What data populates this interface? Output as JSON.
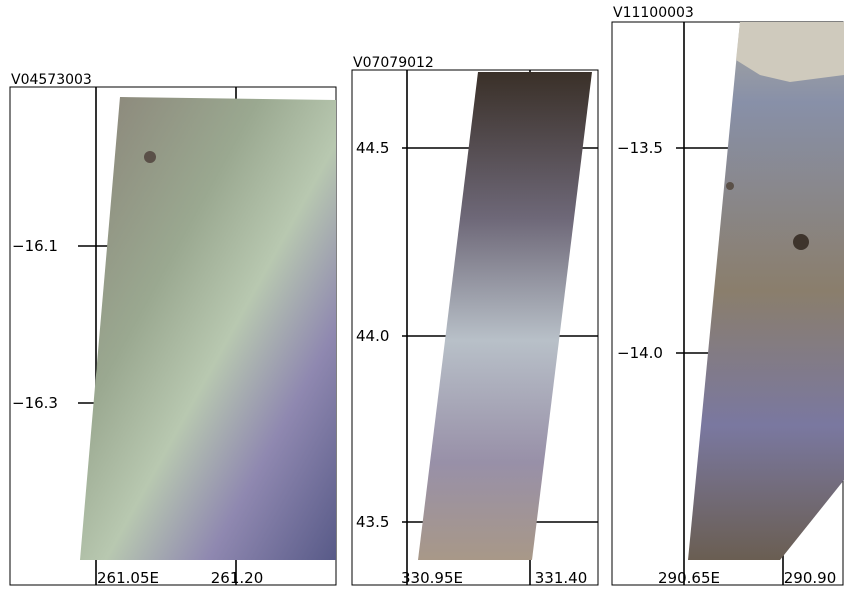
{
  "panels": [
    {
      "title": "V04573003",
      "y_labels": [
        "−16.1",
        "−16.3"
      ],
      "x_labels": [
        "261.05E",
        "261.20"
      ]
    },
    {
      "title": "V07079012",
      "y_labels": [
        "44.5",
        "44.0",
        "43.5"
      ],
      "x_labels": [
        "330.95E",
        "331.40"
      ]
    },
    {
      "title": "V11100003",
      "y_labels": [
        "−13.5",
        "−14.0"
      ],
      "x_labels": [
        "290.65E",
        "290.90"
      ]
    }
  ]
}
